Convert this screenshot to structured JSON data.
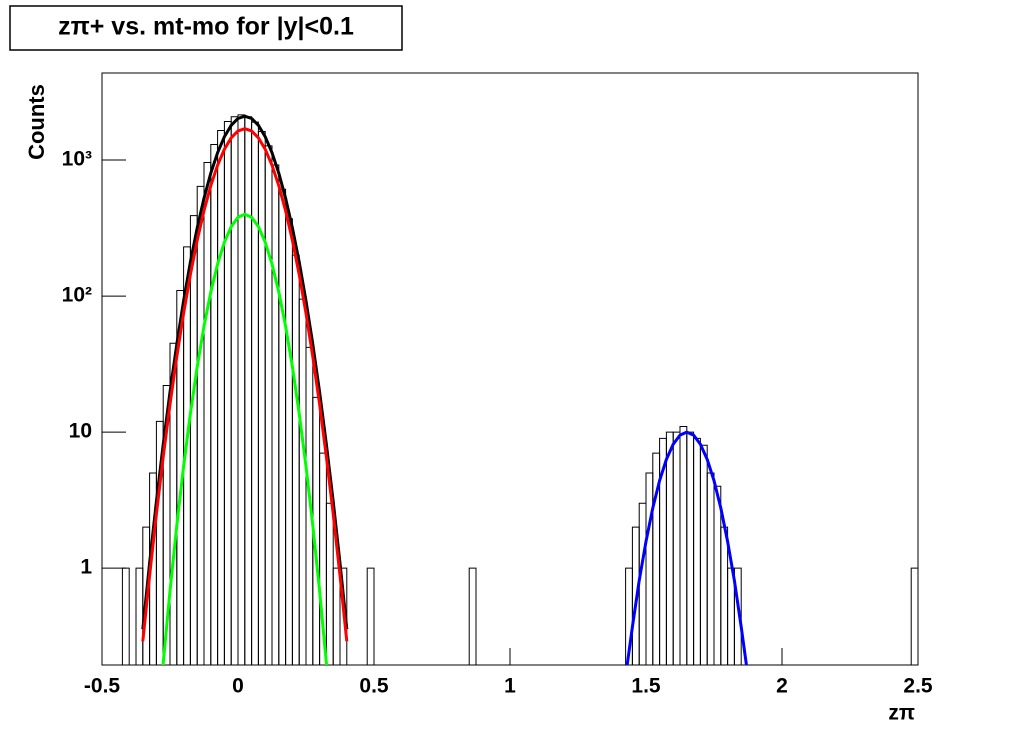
{
  "chart_data": {
    "type": "histogram",
    "title": "zπ+ vs. mt-mo for |y|<0.1",
    "x_label": "zπ",
    "y_label": "Counts",
    "log_y": true,
    "xlim": [
      -0.5,
      2.5
    ],
    "xticks": [
      -0.5,
      0,
      0.5,
      1,
      1.5,
      2,
      2.5
    ],
    "ylim": [
      0.194,
      4365
    ],
    "yticks": [
      1,
      10,
      {
        "value": 100,
        "label": "10²"
      },
      {
        "value": 1000,
        "label": "10³"
      }
    ],
    "color": "#000000",
    "bins": [
      -0.5,
      -0.475,
      -0.45,
      -0.425,
      -0.4,
      -0.375,
      -0.35,
      -0.325,
      -0.3,
      -0.275,
      -0.25,
      -0.225,
      -0.2,
      -0.175,
      -0.15,
      -0.125,
      -0.1,
      -0.075,
      -0.05,
      -0.025,
      0,
      0.025,
      0.05,
      0.075,
      0.1,
      0.125,
      0.15,
      0.175,
      0.2,
      0.225,
      0.25,
      0.275,
      0.3,
      0.325,
      0.35,
      0.375,
      0.4,
      0.425,
      0.45,
      0.475,
      0.5,
      0.525,
      0.55,
      0.575,
      0.6,
      0.625,
      0.65,
      0.675,
      0.7,
      0.725,
      0.75,
      0.775,
      0.8,
      0.825,
      0.85,
      0.875,
      0.9,
      0.925,
      0.95,
      0.975,
      1,
      1.025,
      1.05,
      1.075,
      1.1,
      1.125,
      1.15,
      1.175,
      1.2,
      1.225,
      1.25,
      1.275,
      1.3,
      1.325,
      1.35,
      1.375,
      1.4,
      1.425,
      1.45,
      1.475,
      1.5,
      1.525,
      1.55,
      1.575,
      1.6,
      1.625,
      1.65,
      1.675,
      1.7,
      1.725,
      1.75,
      1.775,
      1.8,
      1.825,
      1.85,
      1.875,
      1.9,
      1.925,
      1.95,
      1.975,
      2,
      2.025,
      2.05,
      2.075,
      2.1,
      2.125,
      2.15,
      2.175,
      2.2,
      2.225,
      2.25,
      2.275,
      2.3,
      2.325,
      2.35,
      2.375,
      2.4,
      2.425,
      2.45,
      2.475,
      2.5
    ],
    "values": [
      0,
      0,
      0,
      1,
      0,
      1,
      2,
      5,
      12,
      22,
      45,
      110,
      230,
      390,
      640,
      960,
      1300,
      1650,
      1920,
      2080,
      2150,
      2080,
      1900,
      1620,
      1270,
      920,
      610,
      370,
      200,
      95,
      42,
      18,
      7,
      3,
      1,
      1,
      0,
      0,
      0,
      1,
      0,
      0,
      0,
      0,
      0,
      0,
      0,
      0,
      0,
      0,
      0,
      0,
      0,
      0,
      1,
      0,
      0,
      0,
      0,
      0,
      0,
      0,
      0,
      0,
      0,
      0,
      0,
      0,
      0,
      0,
      0,
      0,
      0,
      0,
      0,
      0,
      0,
      1,
      2,
      3,
      5,
      7,
      9,
      10,
      10,
      11,
      10,
      9,
      8,
      5,
      4,
      2,
      1,
      1,
      0,
      0,
      0,
      0,
      0,
      0,
      0,
      0,
      0,
      0,
      0,
      0,
      0,
      0,
      0,
      0,
      0,
      0,
      0,
      0,
      0,
      0,
      0,
      0,
      0,
      1
    ],
    "fits": [
      {
        "color": "#000000",
        "x": [
          -0.35,
          -0.325,
          -0.3,
          -0.275,
          -0.25,
          -0.225,
          -0.2,
          -0.175,
          -0.15,
          -0.125,
          -0.1,
          -0.075,
          -0.05,
          -0.025,
          0,
          0.025,
          0.05,
          0.075,
          0.1,
          0.125,
          0.15,
          0.175,
          0.2,
          0.225,
          0.25,
          0.275,
          0.3,
          0.325,
          0.35,
          0.375,
          0.4
        ],
        "values": [
          0.356,
          1.09,
          3.09,
          8.1,
          19.7,
          44.3,
          92.2,
          178,
          317,
          524,
          801,
          1133,
          1484,
          1800,
          2021,
          2100,
          2021,
          1800,
          1484,
          1133,
          801,
          524,
          317,
          178,
          92.2,
          44.3,
          19.7,
          8.1,
          3.09,
          1.09,
          0.356
        ]
      },
      {
        "color": "#ff0000",
        "x": [
          -0.35,
          -0.325,
          -0.3,
          -0.275,
          -0.25,
          -0.225,
          -0.2,
          -0.175,
          -0.15,
          -0.125,
          -0.1,
          -0.075,
          -0.05,
          -0.025,
          0,
          0.025,
          0.05,
          0.075,
          0.1,
          0.125,
          0.15,
          0.175,
          0.2,
          0.225,
          0.25,
          0.275,
          0.3,
          0.325,
          0.35,
          0.375,
          0.4
        ],
        "values": [
          0.29,
          0.88,
          2.5,
          6.56,
          16,
          35.9,
          74.6,
          144,
          257,
          424,
          648,
          917,
          1201,
          1457,
          1636,
          1700,
          1636,
          1457,
          1201,
          917,
          648,
          424,
          257,
          144,
          74.6,
          35.9,
          16,
          6.56,
          2.5,
          0.88,
          0.29
        ]
      },
      {
        "color": "#00ff00",
        "x": [
          -0.3,
          -0.275,
          -0.25,
          -0.225,
          -0.2,
          -0.175,
          -0.15,
          -0.125,
          -0.1,
          -0.075,
          -0.05,
          -0.025,
          0,
          0.025,
          0.05,
          0.075,
          0.1,
          0.125,
          0.15,
          0.175,
          0.2,
          0.225,
          0.25,
          0.275,
          0.3,
          0.325,
          0.35
        ],
        "values": [
          0.054,
          0.2,
          0.68,
          2.06,
          5.6,
          13.7,
          30.2,
          60,
          107.1,
          172.2,
          248.9,
          324,
          379.5,
          400,
          379.5,
          324,
          248.9,
          172.2,
          107.1,
          60,
          30.2,
          13.7,
          5.6,
          2.06,
          0.68,
          0.2,
          0.054
        ]
      },
      {
        "color": "#0000ff",
        "x": [
          1.425,
          1.45,
          1.475,
          1.5,
          1.525,
          1.55,
          1.575,
          1.6,
          1.625,
          1.65,
          1.675,
          1.7,
          1.725,
          1.75,
          1.775,
          1.8,
          1.825,
          1.85,
          1.875
        ],
        "values": [
          0.16,
          0.37,
          0.81,
          1.57,
          2.77,
          4.4,
          6.3,
          8.14,
          9.5,
          10,
          9.5,
          8.14,
          6.3,
          4.4,
          2.77,
          1.57,
          0.81,
          0.37,
          0.16
        ]
      }
    ]
  }
}
